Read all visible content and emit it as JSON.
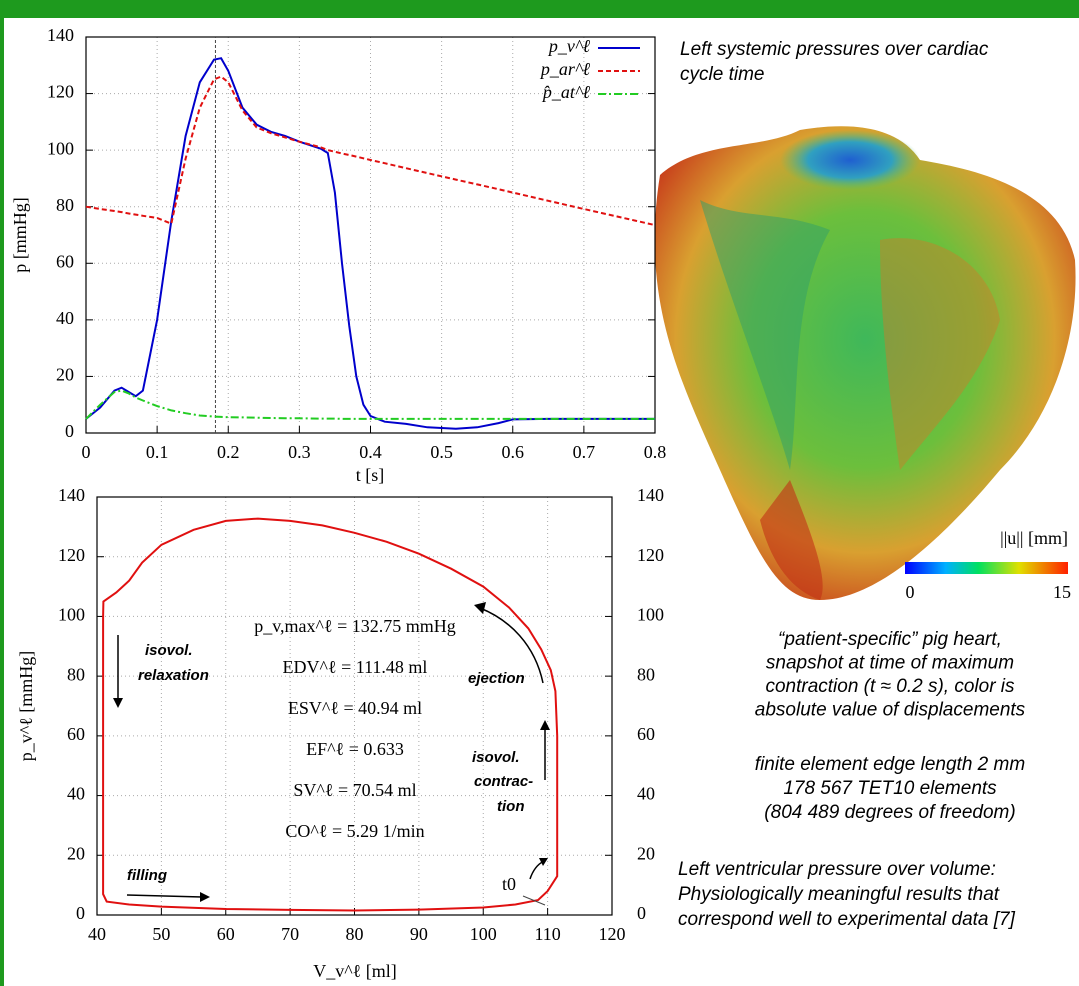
{
  "chart_data": [
    {
      "type": "line",
      "ylabel": "p [mmHg]",
      "xlabel": "t [s]",
      "xlim": [
        0,
        0.8
      ],
      "xticks": [
        0,
        0.1,
        0.2,
        0.3,
        0.4,
        0.5,
        0.6,
        0.7,
        0.8
      ],
      "ylim": [
        0,
        140
      ],
      "yticks": [
        0,
        20,
        40,
        60,
        80,
        100,
        120,
        140
      ],
      "grid": true,
      "legend": "top-right",
      "vline": 0.182,
      "x": [
        0,
        0.02,
        0.04,
        0.05,
        0.06,
        0.07,
        0.08,
        0.1,
        0.12,
        0.14,
        0.16,
        0.18,
        0.19,
        0.2,
        0.22,
        0.24,
        0.26,
        0.28,
        0.3,
        0.33,
        0.34,
        0.35,
        0.36,
        0.37,
        0.38,
        0.39,
        0.4,
        0.42,
        0.45,
        0.48,
        0.52,
        0.55,
        0.58,
        0.6,
        0.65,
        0.7,
        0.8
      ],
      "series": [
        {
          "name": "p_v^ℓ",
          "color": "#0000cc",
          "dash": "solid",
          "values": [
            5,
            9,
            15,
            16,
            14.5,
            13,
            15,
            40,
            75,
            105,
            124,
            132,
            132.5,
            128,
            115,
            109,
            106.5,
            105,
            103,
            100.5,
            99,
            85,
            60,
            38,
            20,
            10,
            6,
            4,
            3.2,
            2,
            1.5,
            2,
            3.5,
            4.8,
            5,
            5,
            5
          ]
        },
        {
          "name": "p_ar^ℓ",
          "color": "#e01010",
          "dash": "dashed",
          "values": [
            80,
            79.2,
            78.5,
            78.1,
            77.6,
            77.2,
            76.8,
            76,
            74,
            97,
            115,
            125,
            126,
            124,
            114,
            108,
            106,
            104.5,
            103,
            101,
            100,
            99.4,
            98.8,
            98.3,
            97.7,
            97.1,
            96.5,
            95.4,
            93.6,
            91.9,
            89.6,
            87.9,
            86.2,
            85,
            82.1,
            79.2,
            73.5
          ]
        },
        {
          "name": "p̂_at^ℓ",
          "color": "#22cc22",
          "dash": "dashdot",
          "values": [
            5,
            10,
            14.5,
            15,
            14,
            12.5,
            11.5,
            9.5,
            8,
            7,
            6.2,
            5.8,
            5.7,
            5.6,
            5.5,
            5.4,
            5.3,
            5.2,
            5.2,
            5.1,
            5.1,
            5.1,
            5,
            5,
            5,
            5,
            5,
            5,
            5,
            5,
            5,
            5,
            5,
            5,
            5,
            5,
            5
          ]
        }
      ]
    },
    {
      "type": "line",
      "ylabel": "p_v^ℓ [mmHg]",
      "xlabel": "V_v^ℓ [ml]",
      "xlim": [
        40,
        120
      ],
      "xticks": [
        40,
        50,
        60,
        70,
        80,
        90,
        100,
        110,
        120
      ],
      "ylim": [
        0,
        140
      ],
      "yticks": [
        0,
        20,
        40,
        60,
        80,
        100,
        120,
        140
      ],
      "grid": true,
      "mirror_y_labels": true,
      "x": [
        40.94,
        41,
        43,
        45,
        47,
        50,
        55,
        60,
        65,
        70,
        75,
        80,
        85,
        90,
        95,
        100,
        104,
        107,
        109,
        110.5,
        111.2,
        111.48,
        111.48,
        111.48,
        111.48,
        110,
        108.5,
        105,
        100,
        90,
        80,
        70,
        60,
        50,
        45,
        41.5,
        40.94,
        40.94,
        40.94
      ],
      "series": [
        {
          "color": "#e01010",
          "dash": "solid",
          "values": [
            100,
            105,
            108,
            112,
            118,
            124,
            129,
            132,
            132.75,
            132,
            130.5,
            128,
            125,
            121,
            116,
            110,
            103,
            96,
            89,
            82,
            75,
            60,
            40,
            20,
            13,
            8,
            5,
            3.5,
            2.5,
            1.8,
            1.5,
            1.7,
            2,
            2.8,
            3.5,
            4.5,
            7,
            50,
            100
          ]
        }
      ],
      "stats": [
        "p_v,max^ℓ = 132.75 mmHg",
        "EDV^ℓ = 111.48 ml",
        "ESV^ℓ = 40.94 ml",
        "EF^ℓ = 0.633",
        "SV^ℓ = 70.54 ml",
        "CO^ℓ = 5.29 1/min"
      ],
      "phases": [
        [
          "isovol.",
          "relaxation"
        ],
        [
          "ejection"
        ],
        [
          "isovol.",
          "contrac-",
          "tion"
        ],
        [
          "filling"
        ],
        [
          "t0"
        ]
      ]
    }
  ],
  "captions": {
    "top": [
      "Left systemic pressures over cardiac",
      "cycle time"
    ],
    "heart": [
      "“patient-specific” pig heart,",
      "snapshot at time of maximum",
      "contraction (t ≈ 0.2 s), color is",
      "absolute value of displacements"
    ],
    "mesh": [
      "finite element edge length 2 mm",
      "178 567 TET10 elements",
      "(804 489 degrees of freedom)"
    ],
    "bottom": [
      "Left ventricular pressure over volume:",
      "Physiologically meaningful results that",
      "correspond well to experimental data [7]"
    ]
  },
  "colorbar": {
    "label": "||u|| [mm]",
    "min": 0,
    "max": 15
  }
}
